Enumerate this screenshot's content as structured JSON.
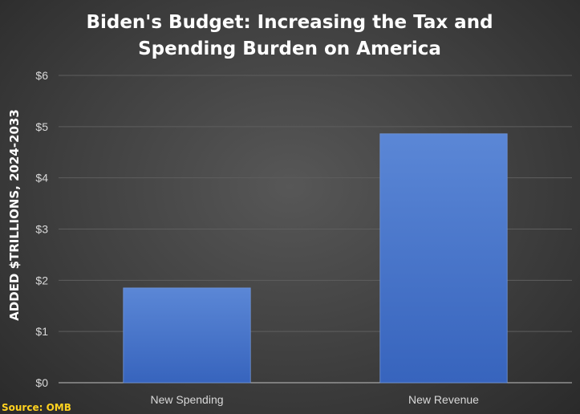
{
  "chart_data": {
    "type": "bar",
    "title_lines": [
      "Biden's Budget: Increasing the Tax and",
      "Spending Burden on America"
    ],
    "ylabel": "ADDED $TRILLIONS, 2024-2033",
    "categories": [
      "New Spending",
      "New Revenue"
    ],
    "values": [
      1.85,
      4.86
    ],
    "ylim": [
      0,
      6
    ],
    "yticks": [
      "$0",
      "$1",
      "$2",
      "$3",
      "$4",
      "$5",
      "$6"
    ],
    "grid": true,
    "bar_color": "#4472c4"
  },
  "source": "Source: OMB"
}
